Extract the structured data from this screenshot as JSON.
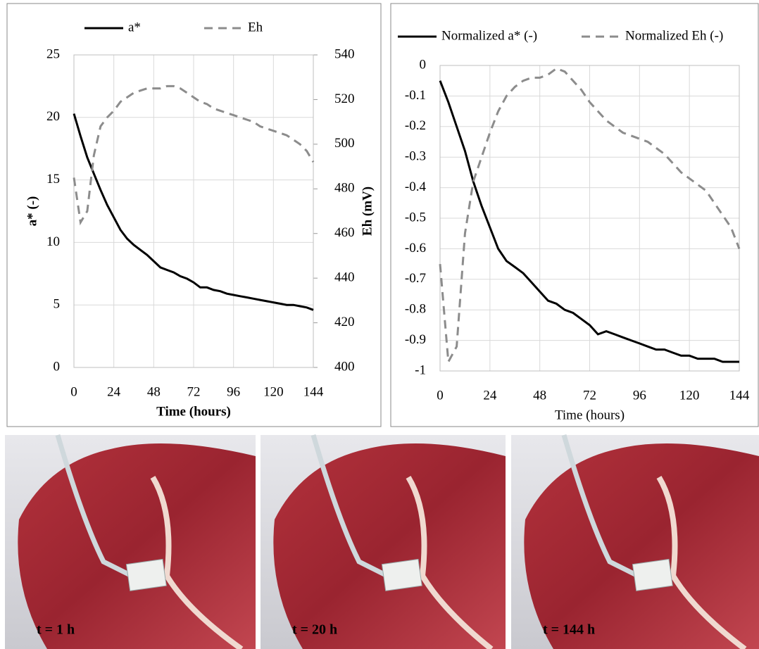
{
  "chart_data": [
    {
      "type": "line",
      "x_label": "Time (hours)",
      "y_label": "a* (-)",
      "y2_label": "Eh (mV)",
      "x": [
        0,
        4,
        8,
        12,
        16,
        20,
        24,
        28,
        32,
        36,
        40,
        44,
        48,
        52,
        56,
        60,
        64,
        68,
        72,
        76,
        80,
        84,
        88,
        92,
        96,
        100,
        104,
        108,
        112,
        116,
        120,
        124,
        128,
        132,
        136,
        140,
        144
      ],
      "xlim": [
        0,
        144
      ],
      "xticks": [
        0,
        24,
        48,
        72,
        96,
        120,
        144
      ],
      "ylim": [
        0,
        25
      ],
      "yticks": [
        0,
        5,
        10,
        15,
        20,
        25
      ],
      "y2lim": [
        400,
        540
      ],
      "y2ticks": [
        400,
        420,
        440,
        460,
        480,
        500,
        520,
        540
      ],
      "grid": true,
      "series": [
        {
          "name": "a*",
          "color": "#000000",
          "line_style": "solid",
          "values": [
            20.3,
            18.5,
            16.8,
            15.5,
            14.2,
            13.0,
            12.0,
            11.0,
            10.3,
            9.8,
            9.4,
            9.0,
            8.5,
            8.0,
            7.8,
            7.6,
            7.3,
            7.1,
            6.8,
            6.4,
            6.4,
            6.2,
            6.1,
            5.9,
            5.8,
            5.7,
            5.6,
            5.5,
            5.4,
            5.3,
            5.2,
            5.1,
            5.0,
            5.0,
            4.9,
            4.8,
            4.6
          ]
        },
        {
          "name": "Eh",
          "color": "#8c8c8c",
          "line_style": "dashed",
          "axis": "y2",
          "values": [
            485,
            465,
            470,
            495,
            508,
            512,
            515,
            519,
            521,
            523,
            524,
            525,
            525,
            525,
            526,
            526,
            525,
            523,
            521,
            519,
            518,
            516,
            515,
            514,
            513,
            512,
            511,
            510,
            508,
            507,
            506,
            505,
            504,
            502,
            500,
            497,
            492
          ]
        }
      ]
    },
    {
      "type": "line",
      "x_label": "Time (hours)",
      "x": [
        0,
        4,
        8,
        12,
        16,
        20,
        24,
        28,
        32,
        36,
        40,
        44,
        48,
        52,
        56,
        60,
        64,
        68,
        72,
        76,
        80,
        84,
        88,
        92,
        96,
        100,
        104,
        108,
        112,
        116,
        120,
        124,
        128,
        132,
        136,
        140,
        144
      ],
      "xlim": [
        0,
        144
      ],
      "xticks": [
        0,
        24,
        48,
        72,
        96,
        120,
        144
      ],
      "ylim": [
        -1,
        0
      ],
      "yticks": [
        0,
        -0.1,
        -0.2,
        -0.3,
        -0.4,
        -0.5,
        -0.6,
        -0.7,
        -0.8,
        -0.9,
        -1
      ],
      "grid": true,
      "series": [
        {
          "name": "Normalized a* (-)",
          "color": "#000000",
          "line_style": "solid",
          "values": [
            -0.05,
            -0.12,
            -0.2,
            -0.28,
            -0.38,
            -0.46,
            -0.53,
            -0.6,
            -0.64,
            -0.66,
            -0.68,
            -0.71,
            -0.74,
            -0.77,
            -0.78,
            -0.8,
            -0.81,
            -0.83,
            -0.85,
            -0.88,
            -0.87,
            -0.88,
            -0.89,
            -0.9,
            -0.91,
            -0.92,
            -0.93,
            -0.93,
            -0.94,
            -0.95,
            -0.95,
            -0.96,
            -0.96,
            -0.96,
            -0.97,
            -0.97,
            -0.97
          ]
        },
        {
          "name": "Normalized Eh (-)",
          "color": "#8c8c8c",
          "line_style": "dashed",
          "values": [
            -0.65,
            -0.97,
            -0.92,
            -0.55,
            -0.38,
            -0.3,
            -0.22,
            -0.15,
            -0.1,
            -0.07,
            -0.05,
            -0.04,
            -0.04,
            -0.03,
            -0.01,
            -0.02,
            -0.05,
            -0.08,
            -0.12,
            -0.15,
            -0.18,
            -0.2,
            -0.22,
            -0.23,
            -0.24,
            -0.25,
            -0.27,
            -0.29,
            -0.32,
            -0.35,
            -0.37,
            -0.39,
            -0.41,
            -0.45,
            -0.49,
            -0.53,
            -0.6
          ]
        }
      ]
    }
  ],
  "images": [
    {
      "caption": "t = 1 h"
    },
    {
      "caption": "t = 20 h"
    },
    {
      "caption": "t = 144 h"
    }
  ]
}
